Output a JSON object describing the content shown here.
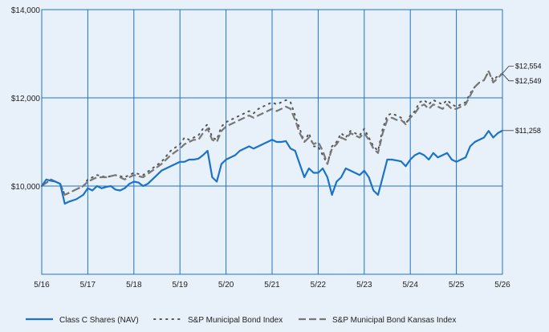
{
  "chart_data": {
    "type": "line",
    "x": [
      "5/16",
      "5/17",
      "5/18",
      "5/19",
      "5/20",
      "5/21",
      "5/22",
      "5/23",
      "5/24",
      "5/25",
      "5/26"
    ],
    "ylim": [
      8000,
      14000
    ],
    "yticks": [
      10000,
      12000,
      14000
    ],
    "ytick_labels": [
      "$10,000",
      "$12,000",
      "$14,000"
    ],
    "grid": true,
    "legend_position": "bottom",
    "colors": {
      "background": "#e8f1fa",
      "plot_background": "#e8f1fa",
      "border": "#1a73c8",
      "grid": "#1a73c8",
      "class_c": "#1a73c8",
      "muni_index": "#555555",
      "kansas_index": "#777777"
    },
    "series": [
      {
        "name": "Class C Shares (NAV)",
        "style": "solid",
        "end_label": "$11,258",
        "values": [
          [
            0,
            10000
          ],
          [
            0.1,
            10150
          ],
          [
            0.2,
            10120
          ],
          [
            0.3,
            10100
          ],
          [
            0.4,
            10050
          ],
          [
            0.5,
            9600
          ],
          [
            0.6,
            9650
          ],
          [
            0.75,
            9700
          ],
          [
            0.9,
            9800
          ],
          [
            1.0,
            9950
          ],
          [
            1.1,
            9900
          ],
          [
            1.2,
            10000
          ],
          [
            1.3,
            9950
          ],
          [
            1.4,
            9980
          ],
          [
            1.5,
            10000
          ],
          [
            1.6,
            9920
          ],
          [
            1.7,
            9900
          ],
          [
            1.8,
            9950
          ],
          [
            1.9,
            10050
          ],
          [
            2.0,
            10100
          ],
          [
            2.1,
            10080
          ],
          [
            2.2,
            10000
          ],
          [
            2.3,
            10050
          ],
          [
            2.4,
            10150
          ],
          [
            2.5,
            10250
          ],
          [
            2.6,
            10350
          ],
          [
            2.7,
            10400
          ],
          [
            2.8,
            10450
          ],
          [
            2.9,
            10500
          ],
          [
            3.0,
            10550
          ],
          [
            3.1,
            10550
          ],
          [
            3.2,
            10600
          ],
          [
            3.3,
            10600
          ],
          [
            3.4,
            10620
          ],
          [
            3.5,
            10700
          ],
          [
            3.6,
            10800
          ],
          [
            3.7,
            10200
          ],
          [
            3.8,
            10100
          ],
          [
            3.9,
            10500
          ],
          [
            4.0,
            10600
          ],
          [
            4.1,
            10650
          ],
          [
            4.2,
            10700
          ],
          [
            4.3,
            10800
          ],
          [
            4.4,
            10850
          ],
          [
            4.5,
            10900
          ],
          [
            4.6,
            10850
          ],
          [
            4.7,
            10900
          ],
          [
            4.8,
            10950
          ],
          [
            4.9,
            11000
          ],
          [
            5.0,
            11050
          ],
          [
            5.1,
            11000
          ],
          [
            5.2,
            11000
          ],
          [
            5.3,
            11020
          ],
          [
            5.4,
            10850
          ],
          [
            5.5,
            10800
          ],
          [
            5.6,
            10500
          ],
          [
            5.7,
            10200
          ],
          [
            5.8,
            10400
          ],
          [
            5.9,
            10300
          ],
          [
            6.0,
            10300
          ],
          [
            6.1,
            10400
          ],
          [
            6.2,
            10200
          ],
          [
            6.3,
            9800
          ],
          [
            6.4,
            10100
          ],
          [
            6.5,
            10200
          ],
          [
            6.6,
            10400
          ],
          [
            6.7,
            10350
          ],
          [
            6.8,
            10300
          ],
          [
            6.9,
            10250
          ],
          [
            7.0,
            10350
          ],
          [
            7.1,
            10200
          ],
          [
            7.2,
            9900
          ],
          [
            7.3,
            9800
          ],
          [
            7.4,
            10200
          ],
          [
            7.5,
            10600
          ],
          [
            7.6,
            10600
          ],
          [
            7.7,
            10580
          ],
          [
            7.8,
            10560
          ],
          [
            7.9,
            10450
          ],
          [
            8.0,
            10600
          ],
          [
            8.1,
            10700
          ],
          [
            8.2,
            10750
          ],
          [
            8.3,
            10700
          ],
          [
            8.4,
            10600
          ],
          [
            8.5,
            10750
          ],
          [
            8.6,
            10650
          ],
          [
            8.7,
            10700
          ],
          [
            8.8,
            10750
          ],
          [
            8.9,
            10600
          ],
          [
            9.0,
            10550
          ],
          [
            9.1,
            10600
          ],
          [
            9.2,
            10650
          ],
          [
            9.3,
            10900
          ],
          [
            9.4,
            11000
          ],
          [
            9.5,
            11050
          ],
          [
            9.6,
            11100
          ],
          [
            9.7,
            11250
          ],
          [
            9.8,
            11100
          ],
          [
            9.9,
            11200
          ],
          [
            10.0,
            11258
          ]
        ]
      },
      {
        "name": "S&P Municipal Bond Index",
        "style": "dotted",
        "end_label": "$12,549",
        "values": [
          [
            0,
            10000
          ],
          [
            0.2,
            10150
          ],
          [
            0.4,
            10050
          ],
          [
            0.5,
            9800
          ],
          [
            0.7,
            9900
          ],
          [
            0.9,
            10000
          ],
          [
            1.0,
            10150
          ],
          [
            1.2,
            10250
          ],
          [
            1.4,
            10200
          ],
          [
            1.6,
            10250
          ],
          [
            1.8,
            10200
          ],
          [
            2.0,
            10300
          ],
          [
            2.2,
            10250
          ],
          [
            2.4,
            10400
          ],
          [
            2.6,
            10550
          ],
          [
            2.8,
            10800
          ],
          [
            3.0,
            10950
          ],
          [
            3.1,
            11100
          ],
          [
            3.2,
            11050
          ],
          [
            3.3,
            11100
          ],
          [
            3.4,
            11150
          ],
          [
            3.5,
            11300
          ],
          [
            3.6,
            11400
          ],
          [
            3.7,
            11100
          ],
          [
            3.8,
            11050
          ],
          [
            3.9,
            11350
          ],
          [
            4.0,
            11450
          ],
          [
            4.1,
            11500
          ],
          [
            4.2,
            11550
          ],
          [
            4.3,
            11600
          ],
          [
            4.4,
            11650
          ],
          [
            4.5,
            11700
          ],
          [
            4.6,
            11650
          ],
          [
            4.7,
            11750
          ],
          [
            4.8,
            11800
          ],
          [
            4.9,
            11850
          ],
          [
            5.0,
            11900
          ],
          [
            5.1,
            11850
          ],
          [
            5.2,
            11900
          ],
          [
            5.3,
            11950
          ],
          [
            5.4,
            11900
          ],
          [
            5.5,
            11600
          ],
          [
            5.6,
            11300
          ],
          [
            5.7,
            11000
          ],
          [
            5.8,
            11200
          ],
          [
            5.9,
            10900
          ],
          [
            6.0,
            10900
          ],
          [
            6.1,
            10700
          ],
          [
            6.2,
            10500
          ],
          [
            6.3,
            10900
          ],
          [
            6.4,
            11000
          ],
          [
            6.5,
            11200
          ],
          [
            6.6,
            11100
          ],
          [
            6.7,
            11250
          ],
          [
            6.8,
            11200
          ],
          [
            6.9,
            11150
          ],
          [
            7.0,
            11300
          ],
          [
            7.1,
            11100
          ],
          [
            7.2,
            10900
          ],
          [
            7.3,
            10800
          ],
          [
            7.4,
            11300
          ],
          [
            7.5,
            11600
          ],
          [
            7.6,
            11650
          ],
          [
            7.7,
            11600
          ],
          [
            7.8,
            11550
          ],
          [
            7.9,
            11400
          ],
          [
            8.0,
            11600
          ],
          [
            8.1,
            11700
          ],
          [
            8.2,
            11900
          ],
          [
            8.3,
            11950
          ],
          [
            8.4,
            11850
          ],
          [
            8.5,
            11950
          ],
          [
            8.6,
            11900
          ],
          [
            8.7,
            11850
          ],
          [
            8.8,
            11950
          ],
          [
            8.9,
            11850
          ],
          [
            9.0,
            11800
          ],
          [
            9.1,
            11850
          ],
          [
            9.2,
            11900
          ],
          [
            9.3,
            12100
          ],
          [
            9.4,
            12250
          ],
          [
            9.5,
            12350
          ],
          [
            9.6,
            12400
          ],
          [
            9.7,
            12600
          ],
          [
            9.8,
            12400
          ],
          [
            9.9,
            12500
          ],
          [
            10.0,
            12549
          ]
        ]
      },
      {
        "name": "S&P Municipal Bond Kansas Index",
        "style": "dashed",
        "end_label": "$12,554",
        "values": [
          [
            0,
            10000
          ],
          [
            0.2,
            10150
          ],
          [
            0.4,
            10050
          ],
          [
            0.5,
            9800
          ],
          [
            0.7,
            9900
          ],
          [
            0.9,
            10000
          ],
          [
            1.0,
            10100
          ],
          [
            1.2,
            10200
          ],
          [
            1.4,
            10200
          ],
          [
            1.6,
            10250
          ],
          [
            1.8,
            10150
          ],
          [
            2.0,
            10250
          ],
          [
            2.2,
            10200
          ],
          [
            2.4,
            10350
          ],
          [
            2.6,
            10500
          ],
          [
            2.8,
            10700
          ],
          [
            3.0,
            10850
          ],
          [
            3.1,
            10950
          ],
          [
            3.2,
            11000
          ],
          [
            3.3,
            11050
          ],
          [
            3.4,
            11050
          ],
          [
            3.5,
            11200
          ],
          [
            3.6,
            11300
          ],
          [
            3.7,
            11050
          ],
          [
            3.8,
            11000
          ],
          [
            3.9,
            11250
          ],
          [
            4.0,
            11350
          ],
          [
            4.1,
            11400
          ],
          [
            4.2,
            11450
          ],
          [
            4.3,
            11500
          ],
          [
            4.4,
            11550
          ],
          [
            4.5,
            11600
          ],
          [
            4.6,
            11550
          ],
          [
            4.7,
            11600
          ],
          [
            4.8,
            11650
          ],
          [
            4.9,
            11700
          ],
          [
            5.0,
            11750
          ],
          [
            5.1,
            11700
          ],
          [
            5.2,
            11750
          ],
          [
            5.3,
            11800
          ],
          [
            5.4,
            11750
          ],
          [
            5.5,
            11500
          ],
          [
            5.6,
            11200
          ],
          [
            5.7,
            11000
          ],
          [
            5.8,
            11100
          ],
          [
            5.9,
            10950
          ],
          [
            6.0,
            11000
          ],
          [
            6.1,
            10800
          ],
          [
            6.2,
            10500
          ],
          [
            6.3,
            10850
          ],
          [
            6.4,
            10950
          ],
          [
            6.5,
            11100
          ],
          [
            6.6,
            11050
          ],
          [
            6.7,
            11200
          ],
          [
            6.8,
            11150
          ],
          [
            6.9,
            11100
          ],
          [
            7.0,
            11200
          ],
          [
            7.1,
            11050
          ],
          [
            7.2,
            10850
          ],
          [
            7.3,
            10750
          ],
          [
            7.4,
            11200
          ],
          [
            7.5,
            11500
          ],
          [
            7.6,
            11550
          ],
          [
            7.7,
            11500
          ],
          [
            7.8,
            11500
          ],
          [
            7.9,
            11400
          ],
          [
            8.0,
            11550
          ],
          [
            8.1,
            11650
          ],
          [
            8.2,
            11800
          ],
          [
            8.3,
            11850
          ],
          [
            8.4,
            11750
          ],
          [
            8.5,
            11850
          ],
          [
            8.6,
            11800
          ],
          [
            8.7,
            11750
          ],
          [
            8.8,
            11850
          ],
          [
            8.9,
            11750
          ],
          [
            9.0,
            11750
          ],
          [
            9.1,
            11800
          ],
          [
            9.2,
            11850
          ],
          [
            9.3,
            12050
          ],
          [
            9.4,
            12250
          ],
          [
            9.5,
            12350
          ],
          [
            9.6,
            12400
          ],
          [
            9.7,
            12600
          ],
          [
            9.8,
            12350
          ],
          [
            9.9,
            12450
          ],
          [
            10.0,
            12554
          ]
        ]
      }
    ]
  }
}
